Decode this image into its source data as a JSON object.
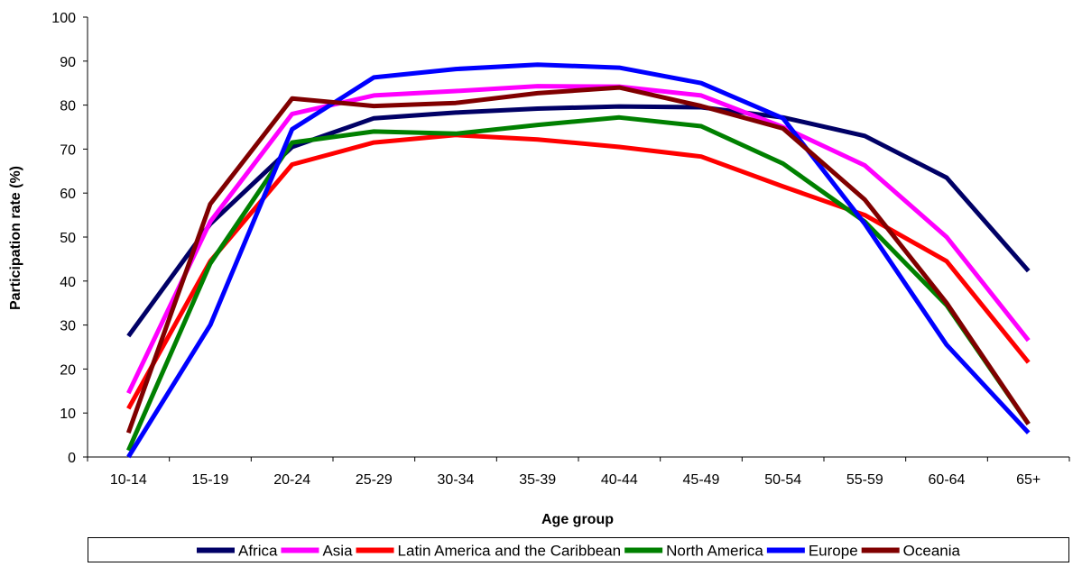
{
  "chart_data": {
    "type": "line",
    "title": "",
    "xlabel": "Age group",
    "ylabel": "Participation rate (%)",
    "ylim": [
      0,
      100
    ],
    "yticks": [
      0,
      10,
      20,
      30,
      40,
      50,
      60,
      70,
      80,
      90,
      100
    ],
    "grid": false,
    "legend_position": "bottom",
    "categories": [
      "10-14",
      "15-19",
      "20-24",
      "25-29",
      "30-34",
      "35-39",
      "40-44",
      "45-49",
      "50-54",
      "55-59",
      "60-64",
      "65+"
    ],
    "series": [
      {
        "name": "Africa",
        "color": "#000066",
        "values": [
          27.5,
          53,
          70.5,
          77,
          78.3,
          79.2,
          79.7,
          79.5,
          77.2,
          73,
          63.5,
          42.3
        ]
      },
      {
        "name": "Asia",
        "color": "#ff00ff",
        "values": [
          14.5,
          53.5,
          78,
          82.2,
          83.2,
          84.3,
          84.2,
          82.2,
          75,
          66.3,
          50,
          26.5
        ]
      },
      {
        "name": "Latin America and the Caribbean",
        "color": "#ff0000",
        "values": [
          11,
          44.5,
          66.5,
          71.5,
          73.2,
          72.2,
          70.5,
          68.3,
          61.5,
          55,
          44.5,
          21.5
        ]
      },
      {
        "name": "North America",
        "color": "#008000",
        "values": [
          1.5,
          44,
          71.5,
          74,
          73.5,
          75.5,
          77.2,
          75.2,
          66.7,
          53.5,
          34.5,
          7.5
        ]
      },
      {
        "name": "Europe",
        "color": "#0000ff",
        "values": [
          0,
          30,
          74.5,
          86.3,
          88.2,
          89.2,
          88.5,
          85,
          77,
          53,
          25.5,
          5.5
        ]
      },
      {
        "name": "Oceania",
        "color": "#800000",
        "values": [
          5.5,
          57.5,
          81.5,
          79.8,
          80.5,
          82.7,
          84,
          79.8,
          74.7,
          58.5,
          35,
          7.5
        ]
      }
    ]
  }
}
